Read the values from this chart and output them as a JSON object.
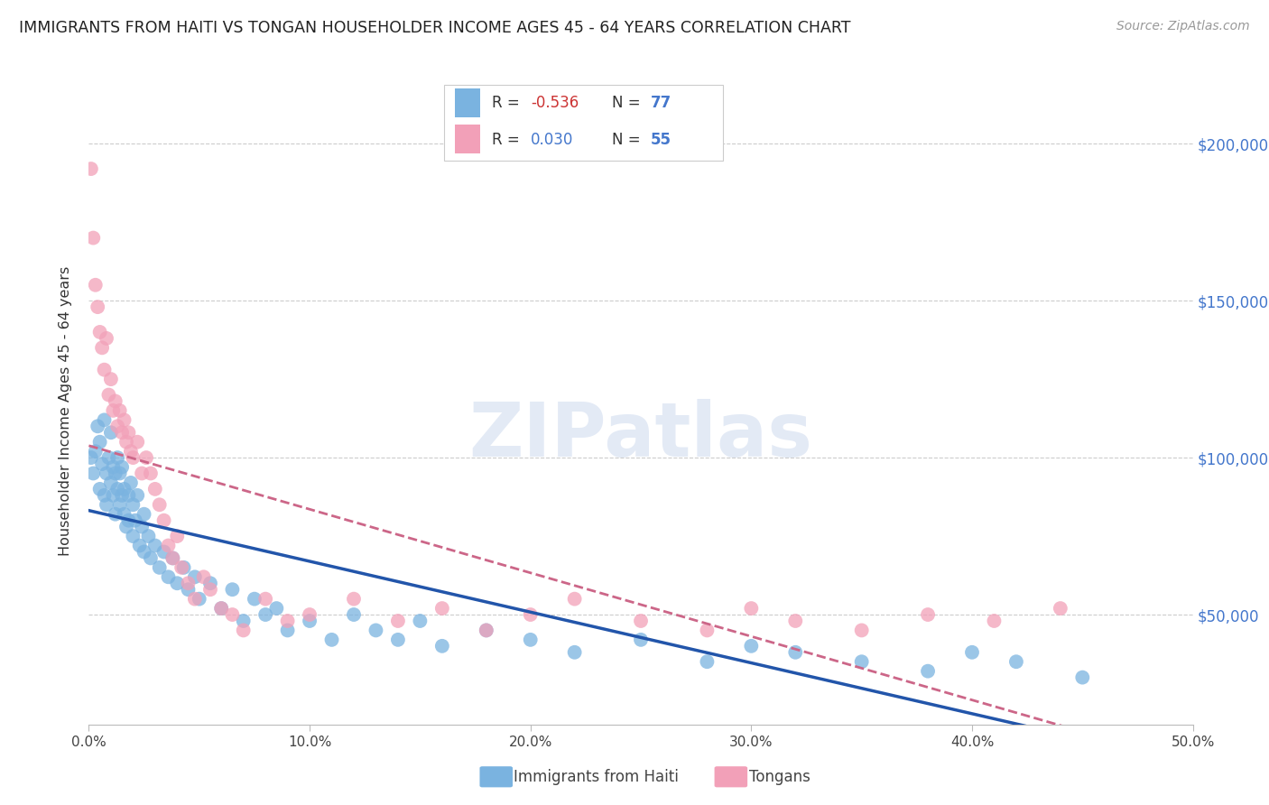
{
  "title": "IMMIGRANTS FROM HAITI VS TONGAN HOUSEHOLDER INCOME AGES 45 - 64 YEARS CORRELATION CHART",
  "source": "Source: ZipAtlas.com",
  "ylabel": "Householder Income Ages 45 - 64 years",
  "ytick_labels": [
    "$50,000",
    "$100,000",
    "$150,000",
    "$200,000"
  ],
  "ytick_values": [
    50000,
    100000,
    150000,
    200000
  ],
  "xmin": 0.0,
  "xmax": 0.5,
  "ymin": 15000,
  "ymax": 215000,
  "haiti_color": "#7ab3e0",
  "tongan_color": "#f2a0b8",
  "haiti_line_color": "#2255aa",
  "tongan_line_color": "#cc6688",
  "haiti_scatter_x": [
    0.001,
    0.002,
    0.003,
    0.004,
    0.005,
    0.005,
    0.006,
    0.007,
    0.007,
    0.008,
    0.008,
    0.009,
    0.01,
    0.01,
    0.011,
    0.011,
    0.012,
    0.012,
    0.013,
    0.013,
    0.014,
    0.014,
    0.015,
    0.015,
    0.016,
    0.016,
    0.017,
    0.018,
    0.018,
    0.019,
    0.02,
    0.02,
    0.021,
    0.022,
    0.023,
    0.024,
    0.025,
    0.025,
    0.027,
    0.028,
    0.03,
    0.032,
    0.034,
    0.036,
    0.038,
    0.04,
    0.043,
    0.045,
    0.048,
    0.05,
    0.055,
    0.06,
    0.065,
    0.07,
    0.075,
    0.08,
    0.085,
    0.09,
    0.1,
    0.11,
    0.12,
    0.13,
    0.14,
    0.15,
    0.16,
    0.18,
    0.2,
    0.22,
    0.25,
    0.28,
    0.3,
    0.32,
    0.35,
    0.38,
    0.4,
    0.42,
    0.45
  ],
  "haiti_scatter_y": [
    100000,
    95000,
    102000,
    110000,
    90000,
    105000,
    98000,
    88000,
    112000,
    95000,
    85000,
    100000,
    92000,
    108000,
    88000,
    97000,
    95000,
    82000,
    100000,
    90000,
    85000,
    95000,
    88000,
    97000,
    82000,
    90000,
    78000,
    88000,
    80000,
    92000,
    75000,
    85000,
    80000,
    88000,
    72000,
    78000,
    82000,
    70000,
    75000,
    68000,
    72000,
    65000,
    70000,
    62000,
    68000,
    60000,
    65000,
    58000,
    62000,
    55000,
    60000,
    52000,
    58000,
    48000,
    55000,
    50000,
    52000,
    45000,
    48000,
    42000,
    50000,
    45000,
    42000,
    48000,
    40000,
    45000,
    42000,
    38000,
    42000,
    35000,
    40000,
    38000,
    35000,
    32000,
    38000,
    35000,
    30000
  ],
  "tongan_scatter_x": [
    0.001,
    0.002,
    0.003,
    0.004,
    0.005,
    0.006,
    0.007,
    0.008,
    0.009,
    0.01,
    0.011,
    0.012,
    0.013,
    0.014,
    0.015,
    0.016,
    0.017,
    0.018,
    0.019,
    0.02,
    0.022,
    0.024,
    0.026,
    0.028,
    0.03,
    0.032,
    0.034,
    0.036,
    0.038,
    0.04,
    0.042,
    0.045,
    0.048,
    0.052,
    0.055,
    0.06,
    0.065,
    0.07,
    0.08,
    0.09,
    0.1,
    0.12,
    0.14,
    0.16,
    0.18,
    0.2,
    0.22,
    0.25,
    0.28,
    0.3,
    0.32,
    0.35,
    0.38,
    0.41,
    0.44
  ],
  "tongan_scatter_y": [
    192000,
    170000,
    155000,
    148000,
    140000,
    135000,
    128000,
    138000,
    120000,
    125000,
    115000,
    118000,
    110000,
    115000,
    108000,
    112000,
    105000,
    108000,
    102000,
    100000,
    105000,
    95000,
    100000,
    95000,
    90000,
    85000,
    80000,
    72000,
    68000,
    75000,
    65000,
    60000,
    55000,
    62000,
    58000,
    52000,
    50000,
    45000,
    55000,
    48000,
    50000,
    55000,
    48000,
    52000,
    45000,
    50000,
    55000,
    48000,
    45000,
    52000,
    48000,
    45000,
    50000,
    48000,
    52000
  ]
}
